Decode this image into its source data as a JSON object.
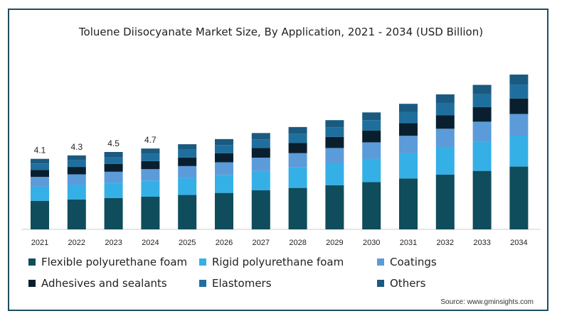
{
  "chart_data": {
    "type": "bar",
    "stacked": true,
    "title": "Toluene Diisocyanate Market Size, By Application, 2021 - 2034 (USD Billion)",
    "categories": [
      "2021",
      "2022",
      "2023",
      "2024",
      "2025",
      "2026",
      "2027",
      "2028",
      "2029",
      "2030",
      "2031",
      "2032",
      "2033",
      "2034"
    ],
    "totals_labels": [
      "4.1",
      "4.3",
      "4.5",
      "4.7",
      "",
      "",
      "",
      "",
      "",
      "",
      "",
      "",
      "",
      ""
    ],
    "totals": [
      4.1,
      4.3,
      4.5,
      4.7,
      4.95,
      5.25,
      5.6,
      5.95,
      6.35,
      6.8,
      7.3,
      7.85,
      8.4,
      9.0
    ],
    "series": [
      {
        "name": "Flexible polyurethane foam",
        "color": "#0f4c5c",
        "values": [
          1.66,
          1.74,
          1.82,
          1.9,
          2.0,
          2.12,
          2.27,
          2.41,
          2.57,
          2.75,
          2.96,
          3.18,
          3.4,
          3.65
        ]
      },
      {
        "name": "Rigid polyurethane foam",
        "color": "#35b0e6",
        "values": [
          0.82,
          0.86,
          0.9,
          0.94,
          0.99,
          1.05,
          1.12,
          1.19,
          1.27,
          1.36,
          1.46,
          1.57,
          1.68,
          1.8
        ]
      },
      {
        "name": "Coatings",
        "color": "#5c9bd9",
        "values": [
          0.57,
          0.6,
          0.63,
          0.66,
          0.69,
          0.73,
          0.78,
          0.83,
          0.89,
          0.95,
          1.02,
          1.1,
          1.18,
          1.26
        ]
      },
      {
        "name": "Adhesives and sealants",
        "color": "#0a1f2e",
        "values": [
          0.41,
          0.43,
          0.45,
          0.47,
          0.5,
          0.53,
          0.56,
          0.6,
          0.64,
          0.68,
          0.73,
          0.79,
          0.84,
          0.9
        ]
      },
      {
        "name": "Elastomers",
        "color": "#1f6f9e",
        "values": [
          0.37,
          0.39,
          0.41,
          0.42,
          0.45,
          0.47,
          0.5,
          0.54,
          0.57,
          0.61,
          0.66,
          0.71,
          0.76,
          0.81
        ]
      },
      {
        "name": "Others",
        "color": "#1b5a80",
        "values": [
          0.27,
          0.28,
          0.29,
          0.31,
          0.32,
          0.35,
          0.37,
          0.38,
          0.41,
          0.45,
          0.47,
          0.5,
          0.54,
          0.58
        ]
      }
    ],
    "ylim": [
      0,
      9.6
    ],
    "legend_position": "bottom",
    "grid": false
  },
  "source_text": "Source: www.gminsights.com"
}
